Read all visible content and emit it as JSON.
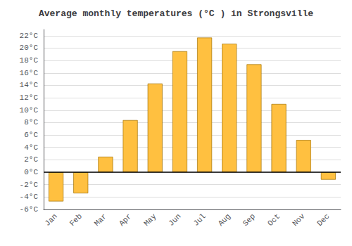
{
  "chart_data": {
    "type": "bar",
    "title": "Average monthly temperatures (°C ) in Strongsville",
    "categories": [
      "Jan",
      "Feb",
      "Mar",
      "Apr",
      "May",
      "Jun",
      "Jul",
      "Aug",
      "Sep",
      "Oct",
      "Nov",
      "Dec"
    ],
    "values": [
      -4.7,
      -3.4,
      2.5,
      8.4,
      14.3,
      19.5,
      21.7,
      20.7,
      17.4,
      11.0,
      5.2,
      -1.2
    ],
    "color": "#FFC040",
    "ylim": [
      -6,
      23
    ],
    "yticks": [
      {
        "value": -6,
        "label": "-6°C"
      },
      {
        "value": -4,
        "label": "-4°C"
      },
      {
        "value": -2,
        "label": "-2°C"
      },
      {
        "value": 0,
        "label": "0°C"
      },
      {
        "value": 2,
        "label": "2°C"
      },
      {
        "value": 4,
        "label": "4°C"
      },
      {
        "value": 6,
        "label": "6°C"
      },
      {
        "value": 8,
        "label": "8°C"
      },
      {
        "value": 10,
        "label": "10°C"
      },
      {
        "value": 12,
        "label": "12°C"
      },
      {
        "value": 14,
        "label": "14°C"
      },
      {
        "value": 16,
        "label": "16°C"
      },
      {
        "value": 18,
        "label": "18°C"
      },
      {
        "value": 20,
        "label": "20°C"
      },
      {
        "value": 22,
        "label": "22°C"
      }
    ],
    "grid": true
  }
}
